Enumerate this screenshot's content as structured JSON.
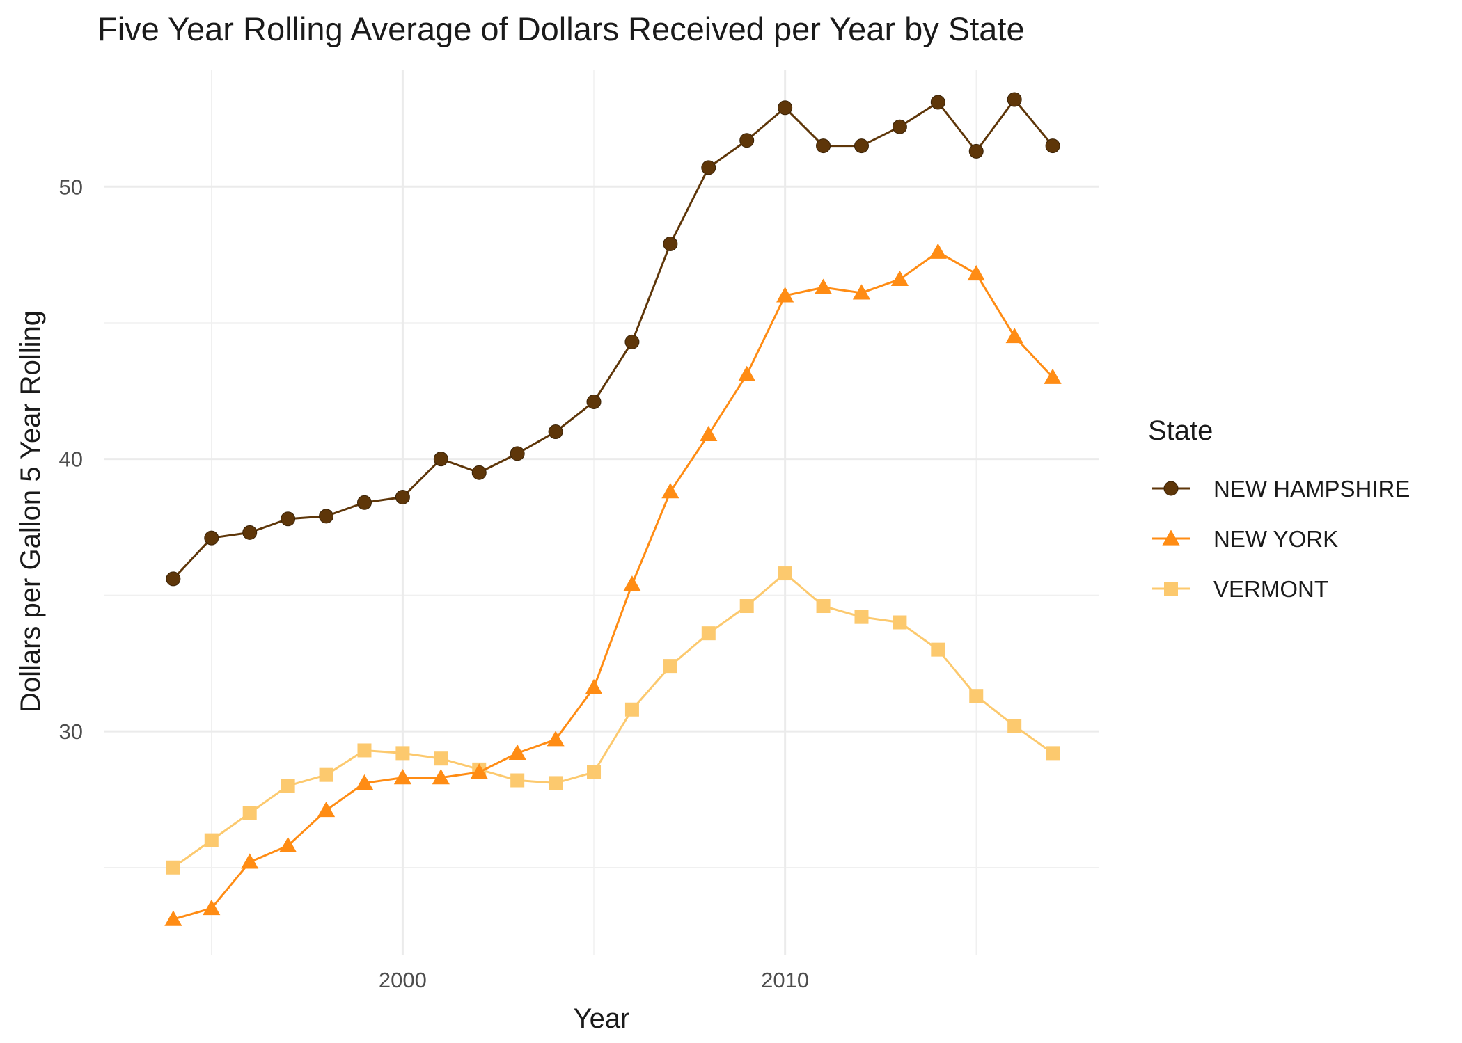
{
  "chart_data": {
    "type": "line",
    "title": "Five Year Rolling Average of Dollars Received per Year by State",
    "xlabel": "Year",
    "ylabel": "Dollars per Gallon 5 Year Rolling",
    "x": [
      1994,
      1995,
      1996,
      1997,
      1998,
      1999,
      2000,
      2001,
      2002,
      2003,
      2004,
      2005,
      2006,
      2007,
      2008,
      2009,
      2010,
      2011,
      2012,
      2013,
      2014,
      2015,
      2016,
      2017
    ],
    "xlim": [
      1992.2,
      2018.2
    ],
    "ylim": [
      21.8,
      54.3
    ],
    "x_ticks": [
      2000,
      2010
    ],
    "y_ticks": [
      30,
      40,
      50
    ],
    "grid": true,
    "legend": {
      "title": "State",
      "position": "right"
    },
    "series": [
      {
        "name": "NEW HAMPSHIRE",
        "color": "#5e3609",
        "marker": "circle",
        "values": [
          35.6,
          37.1,
          37.3,
          37.8,
          37.9,
          38.4,
          38.6,
          40.0,
          39.5,
          40.2,
          41.0,
          42.1,
          44.3,
          47.9,
          50.7,
          51.7,
          52.9,
          51.5,
          51.5,
          52.2,
          53.1,
          51.3,
          53.2,
          51.5
        ]
      },
      {
        "name": "NEW YORK",
        "color": "#ff8c14",
        "marker": "triangle",
        "values": [
          23.1,
          23.5,
          25.2,
          25.8,
          27.1,
          28.1,
          28.3,
          28.3,
          28.5,
          29.2,
          29.7,
          31.6,
          35.4,
          38.8,
          40.9,
          43.1,
          46.0,
          46.3,
          46.1,
          46.6,
          47.6,
          46.8,
          44.5,
          43.0
        ]
      },
      {
        "name": "VERMONT",
        "color": "#fcc96e",
        "marker": "square",
        "values": [
          25.0,
          26.0,
          27.0,
          28.0,
          28.4,
          29.3,
          29.2,
          29.0,
          28.6,
          28.2,
          28.1,
          28.5,
          30.8,
          32.4,
          33.6,
          34.6,
          35.8,
          34.6,
          34.2,
          34.0,
          33.0,
          31.3,
          30.2,
          29.2
        ]
      }
    ]
  }
}
